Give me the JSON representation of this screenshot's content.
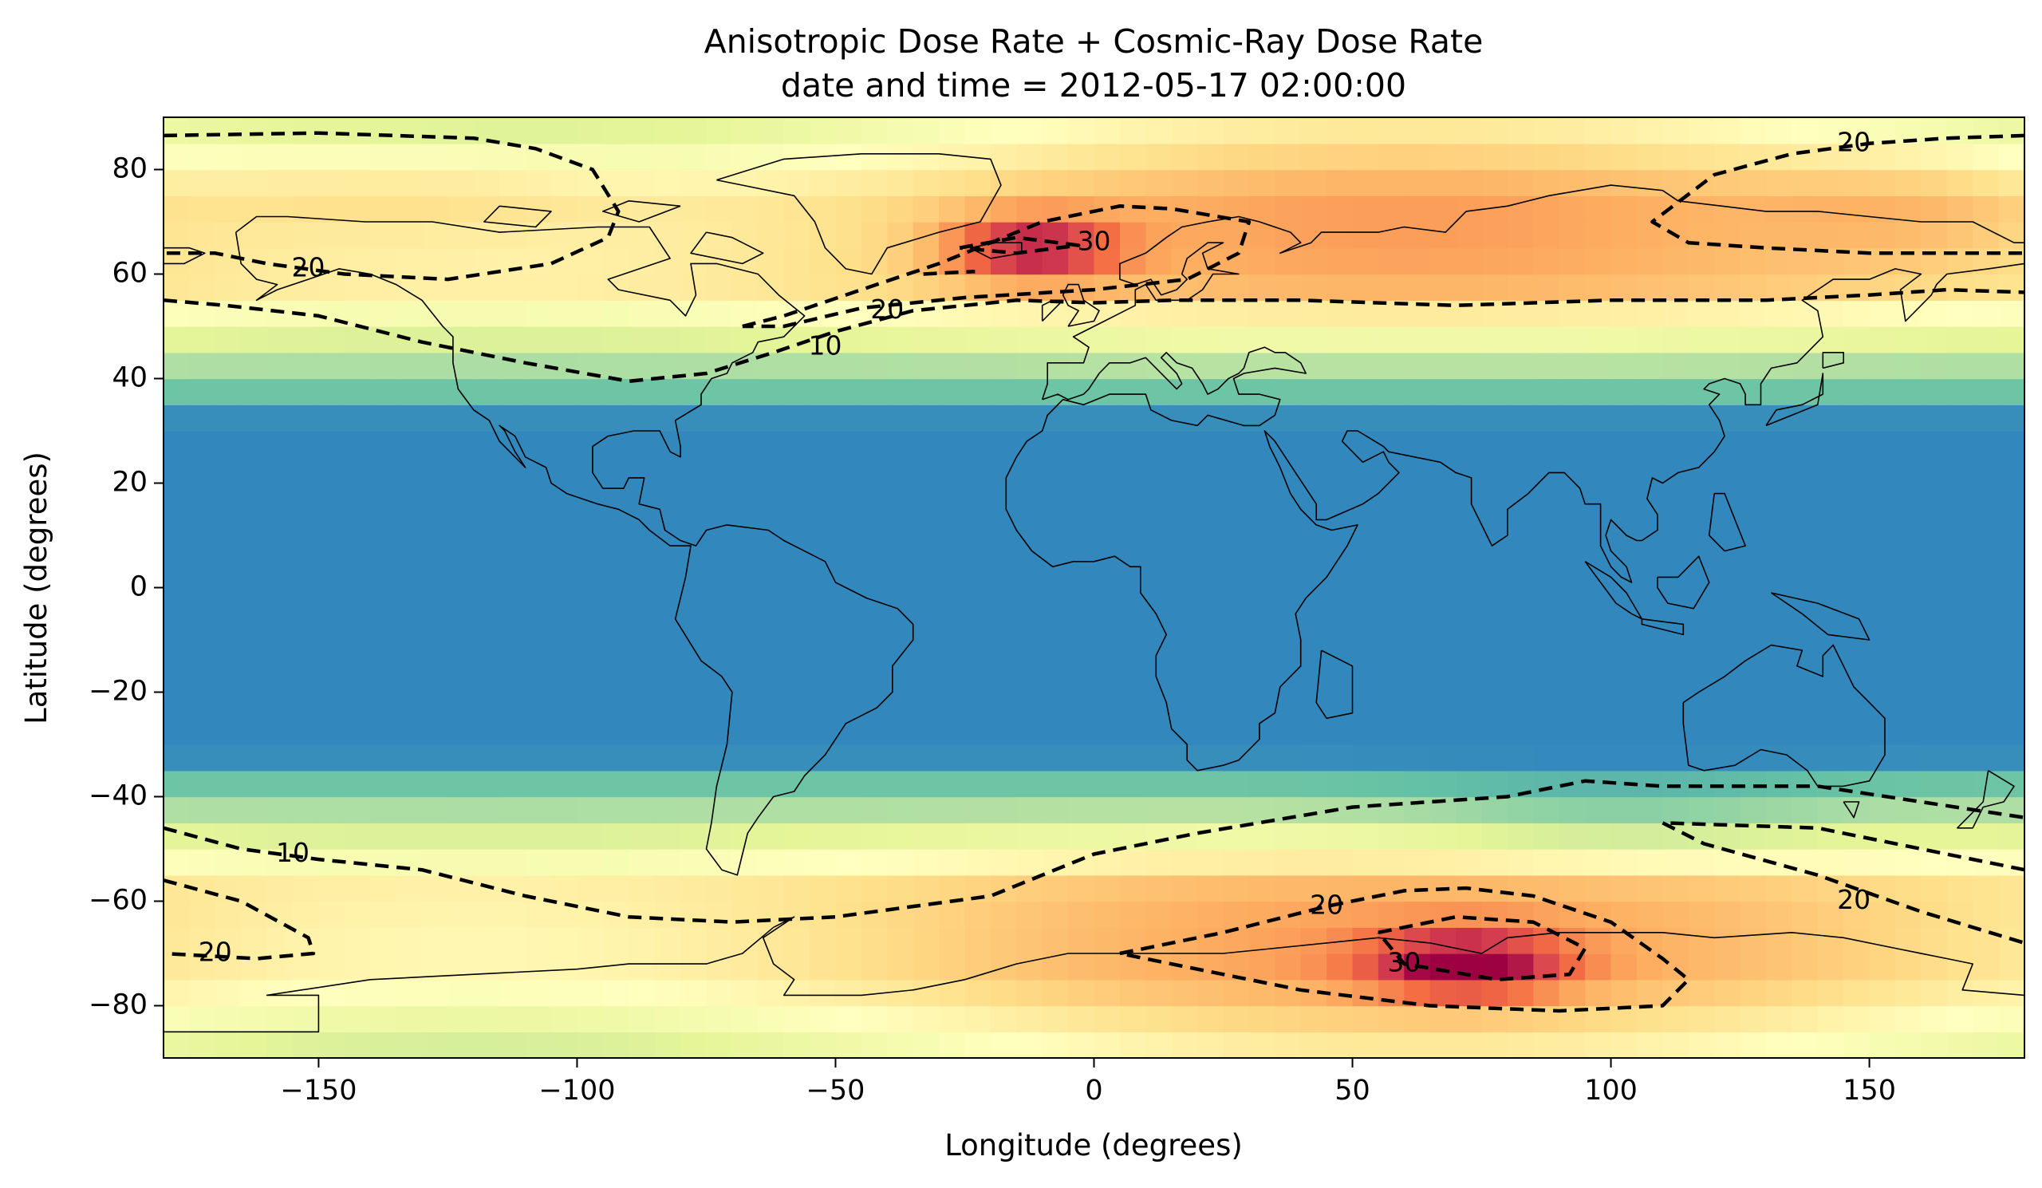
{
  "chart_data": {
    "type": "heatmap",
    "title": "Anisotropic Dose Rate + Cosmic-Ray Dose Rate",
    "subtitle": "date and time = 2012-05-17 02:00:00",
    "xlabel": "Longitude (degrees)",
    "ylabel": "Latitude (degrees)",
    "xlim": [
      -180,
      180
    ],
    "ylim": [
      -90,
      90
    ],
    "xticks": [
      -150,
      -100,
      -50,
      0,
      50,
      100,
      150
    ],
    "yticks": [
      -80,
      -60,
      -40,
      -20,
      0,
      20,
      40,
      60,
      80
    ],
    "xtick_labels": [
      "−150",
      "−100",
      "−50",
      "0",
      "50",
      "100",
      "150"
    ],
    "ytick_labels": [
      "−80",
      "−60",
      "−40",
      "−20",
      "0",
      "20",
      "40",
      "60",
      "80"
    ],
    "colormap": "Spectral_r",
    "grid_resolution_degrees": 5,
    "contour_levels": [
      10,
      20,
      30
    ],
    "contour_style": "dashed black",
    "contour_labels": [
      {
        "text": "20",
        "lon": 147,
        "lat": 85
      },
      {
        "text": "30",
        "lon": 0,
        "lat": 66
      },
      {
        "text": "20",
        "lon": -152,
        "lat": 61
      },
      {
        "text": "20",
        "lon": -40,
        "lat": 53
      },
      {
        "text": "10",
        "lon": -52,
        "lat": 46
      },
      {
        "text": "10",
        "lon": -155,
        "lat": -51
      },
      {
        "text": "20",
        "lon": -170,
        "lat": -70
      },
      {
        "text": "20",
        "lon": 45,
        "lat": -61
      },
      {
        "text": "30",
        "lon": 60,
        "lat": -72
      },
      {
        "text": "20",
        "lon": 147,
        "lat": -60
      }
    ],
    "coastlines": true,
    "grid": false,
    "legend": "none"
  }
}
